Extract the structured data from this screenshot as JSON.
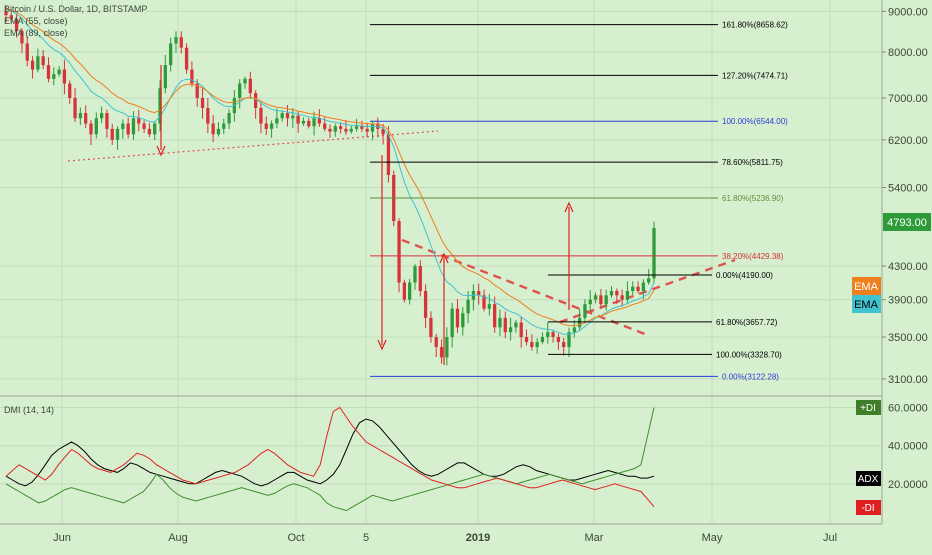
{
  "header": {
    "symbol_line": "Bitcoin / U.S. Dollar, 1D, BITSTAMP",
    "ema_fast_line": "EMA (55, close)",
    "ema_slow_line": "EMA (89, close)"
  },
  "colors": {
    "background": "#d6efcf",
    "candle_up": "#2e9b3a",
    "candle_down": "#d8323a",
    "ema_orange": "#f07f1e",
    "ema_teal": "#3ec3cf",
    "fib_black": "#000000",
    "fib_blue": "#2b3bd6",
    "fib_green": "#5f8f3a",
    "fib_red": "#d8323a",
    "adx": "#000000",
    "plus_di": "#3f8f2f",
    "minus_di": "#e02020"
  },
  "chart_data": [
    {
      "type": "candlestick",
      "title": "Bitcoin / U.S. Dollar, 1D, BITSTAMP",
      "x_ticks": [
        "Jun",
        "Aug",
        "Oct",
        "5",
        "2019",
        "Mar",
        "May",
        "Jul"
      ],
      "y_ticks": [
        "9000.00",
        "8000.00",
        "7000.00",
        "6200.00",
        "5400.00",
        "4300.00",
        "3900.00",
        "3500.00",
        "3100.00"
      ],
      "y_tick_values": [
        9000,
        8000,
        7000,
        6200,
        5400,
        4300,
        3900,
        3500,
        3100
      ],
      "y_scale": "log",
      "ylim": [
        2950,
        9300
      ],
      "last_price": "4793.00",
      "last_price_value": 4793,
      "ema_badges": [
        "EMA",
        "EMA"
      ],
      "fib_levels": [
        {
          "label": "161.80%(8658.62)",
          "value": 8658.62,
          "set": "upper"
        },
        {
          "label": "127.20%(7474.71)",
          "value": 7474.71,
          "set": "upper"
        },
        {
          "label": "100.00%(6544.00)",
          "value": 6544.0,
          "set": "upper"
        },
        {
          "label": "78.60%(5811.75)",
          "value": 5811.75,
          "set": "upper"
        },
        {
          "label": "61.80%(5236.90)",
          "value": 5236.9,
          "set": "upper"
        },
        {
          "label": "38.20%(4429.38)",
          "value": 4429.38,
          "set": "upper"
        },
        {
          "label": "0.00%(3122.28)",
          "value": 3122.28,
          "set": "upper"
        },
        {
          "label": "0.00%(4190.00)",
          "value": 4190.0,
          "set": "lower"
        },
        {
          "label": "61.80%(3657.72)",
          "value": 3657.72,
          "set": "lower"
        },
        {
          "label": "100.00%(3328.70)",
          "value": 3328.7,
          "set": "lower"
        }
      ],
      "closes": [
        8900,
        8800,
        8500,
        8200,
        7800,
        7600,
        7900,
        7700,
        7400,
        7500,
        7600,
        7300,
        7000,
        6600,
        6700,
        6500,
        6300,
        6600,
        6700,
        6400,
        6200,
        6400,
        6500,
        6300,
        6600,
        6500,
        6400,
        6300,
        6500,
        7200,
        7700,
        8200,
        8350,
        8100,
        7600,
        7300,
        7000,
        6800,
        6500,
        6300,
        6400,
        6500,
        6700,
        7000,
        7300,
        7400,
        7100,
        6800,
        6500,
        6400,
        6500,
        6600,
        6700,
        6600,
        6650,
        6500,
        6550,
        6450,
        6600,
        6500,
        6400,
        6350,
        6450,
        6400,
        6350,
        6400,
        6450,
        6400,
        6350,
        6500,
        6400,
        6300,
        5600,
        4900,
        4100,
        3900,
        4100,
        4300,
        4000,
        3700,
        3500,
        3400,
        3300,
        3500,
        3800,
        3600,
        3750,
        3900,
        4000,
        3950,
        3800,
        3850,
        3600,
        3700,
        3550,
        3600,
        3650,
        3500,
        3450,
        3400,
        3450,
        3500,
        3550,
        3500,
        3450,
        3400,
        3550,
        3600,
        3700,
        3850,
        3900,
        3950,
        3850,
        3950,
        4000,
        3950,
        3900,
        4000,
        4050,
        4000,
        4100,
        4150,
        4800
      ]
    },
    {
      "type": "line",
      "title": "DMI (14, 14)",
      "y_ticks": [
        "60.0000",
        "40.0000",
        "20.0000"
      ],
      "y_tick_values": [
        60,
        40,
        20
      ],
      "ylim": [
        0,
        65
      ],
      "badges": [
        "+DI",
        "ADX",
        "-DI"
      ],
      "series": [
        {
          "name": "ADX",
          "values": [
            24,
            22,
            20,
            19,
            21,
            25,
            30,
            35,
            38,
            40,
            42,
            40,
            37,
            33,
            30,
            28,
            27,
            26,
            28,
            31,
            30,
            28,
            26,
            25,
            24,
            23,
            22,
            21,
            20,
            20,
            22,
            24,
            26,
            27,
            26,
            25,
            24,
            22,
            20,
            19,
            20,
            22,
            24,
            26,
            26,
            24,
            22,
            21,
            20,
            22,
            25,
            30,
            38,
            46,
            52,
            54,
            53,
            50,
            46,
            42,
            38,
            34,
            30,
            27,
            25,
            24,
            25,
            27,
            29,
            31,
            31,
            29,
            27,
            25,
            24,
            24,
            25,
            27,
            29,
            30,
            29,
            27,
            26,
            25,
            24,
            23,
            22,
            22,
            23,
            24,
            25,
            26,
            27,
            26,
            25,
            24,
            24,
            23,
            23,
            24
          ]
        },
        {
          "name": "+DI",
          "values": [
            20,
            18,
            16,
            14,
            12,
            10,
            11,
            13,
            15,
            17,
            18,
            17,
            16,
            15,
            14,
            13,
            12,
            11,
            10,
            12,
            14,
            16,
            20,
            25,
            22,
            18,
            15,
            13,
            12,
            11,
            12,
            13,
            14,
            15,
            16,
            17,
            18,
            17,
            16,
            15,
            14,
            15,
            17,
            19,
            20,
            19,
            18,
            16,
            14,
            10,
            8,
            7,
            6,
            8,
            10,
            12,
            14,
            13,
            12,
            11,
            12,
            13,
            14,
            15,
            16,
            17,
            18,
            19,
            20,
            21,
            22,
            23,
            24,
            25,
            24,
            23,
            22,
            21,
            20,
            21,
            22,
            23,
            24,
            25,
            24,
            23,
            22,
            21,
            20,
            21,
            22,
            23,
            24,
            25,
            26,
            27,
            28,
            30,
            45,
            60
          ]
        },
        {
          "name": "-DI",
          "values": [
            24,
            27,
            30,
            28,
            26,
            24,
            22,
            25,
            30,
            34,
            38,
            36,
            33,
            30,
            28,
            27,
            26,
            28,
            30,
            33,
            36,
            35,
            33,
            30,
            28,
            26,
            24,
            22,
            21,
            20,
            21,
            22,
            23,
            24,
            25,
            26,
            28,
            30,
            33,
            36,
            38,
            36,
            33,
            30,
            28,
            26,
            25,
            24,
            30,
            45,
            58,
            60,
            55,
            50,
            46,
            42,
            40,
            38,
            36,
            34,
            32,
            30,
            28,
            26,
            24,
            22,
            21,
            20,
            19,
            18,
            18,
            19,
            20,
            21,
            22,
            23,
            22,
            21,
            20,
            19,
            18,
            18,
            19,
            20,
            21,
            22,
            21,
            20,
            19,
            18,
            17,
            18,
            19,
            20,
            19,
            18,
            17,
            16,
            12,
            8
          ]
        }
      ]
    }
  ]
}
